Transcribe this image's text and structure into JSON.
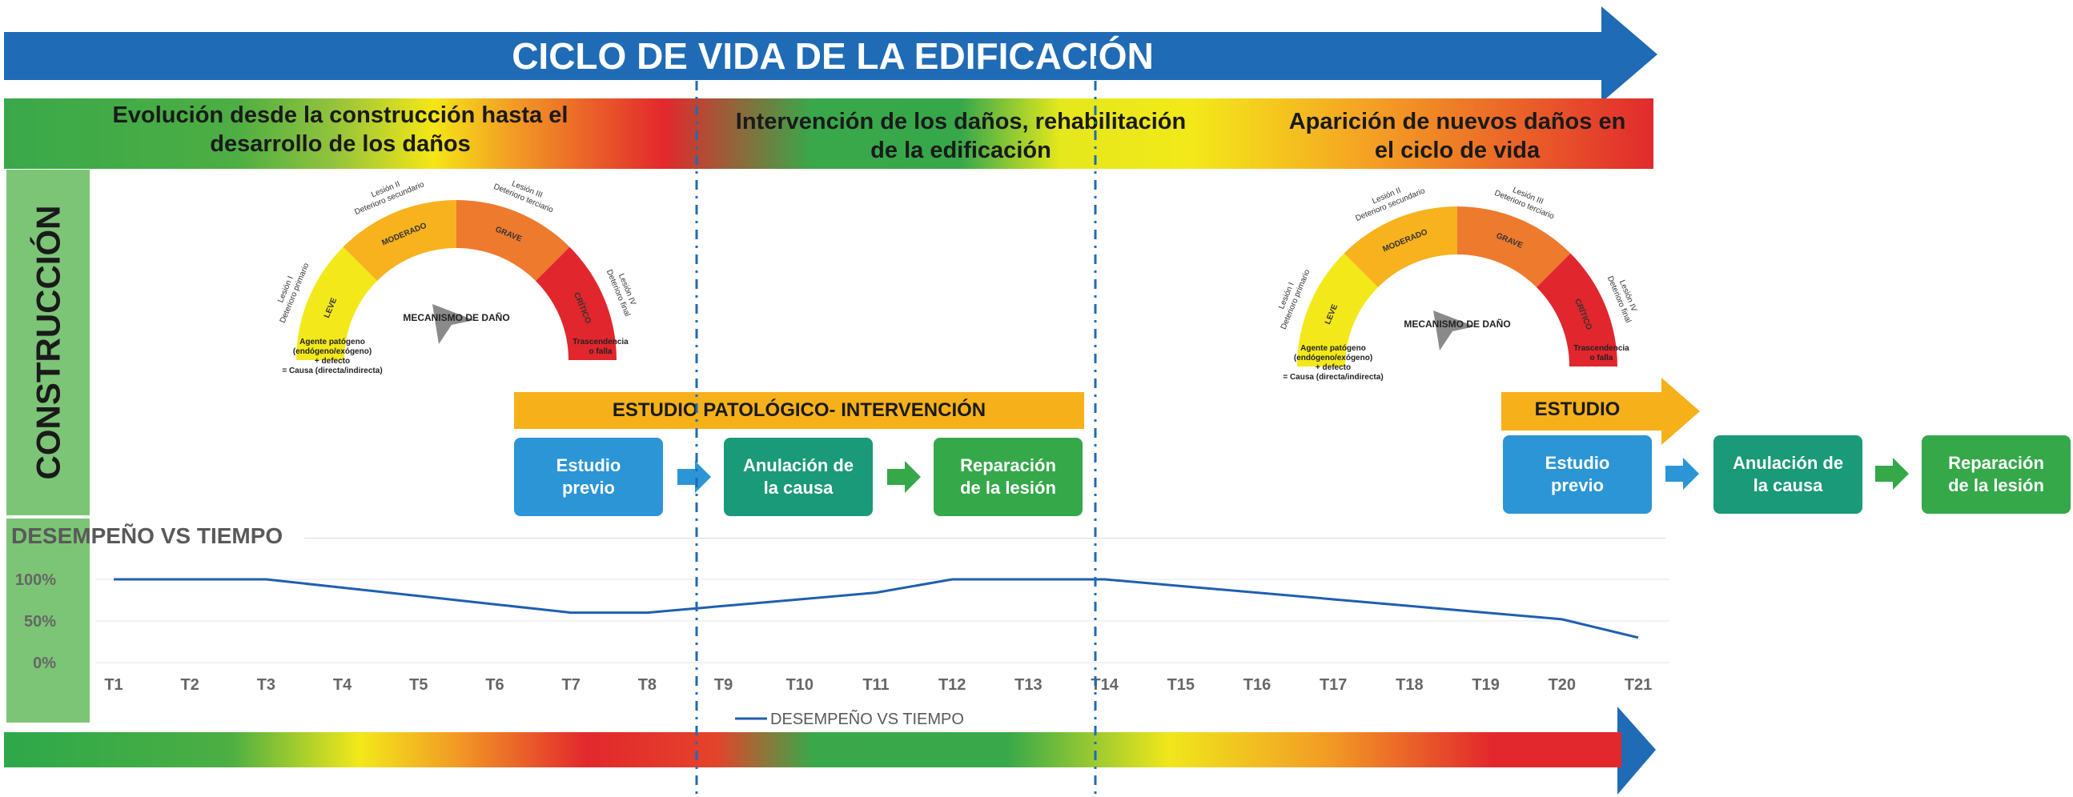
{
  "header": {
    "title": "CICLO DE VIDA DE LA EDIFICACIÓN"
  },
  "phases": [
    {
      "label_line1": "Evolución desde la construcción hasta el",
      "label_line2": "desarrollo de los daños"
    },
    {
      "label_line1": "Intervención de los daños, rehabilitación",
      "label_line2": "de la edificación"
    },
    {
      "label_line1": "Aparición de nuevos daños en",
      "label_line2": "el ciclo de vida"
    }
  ],
  "side_label": "CONSTRUCCIÓN",
  "gauge": {
    "center_label": "MECANISMO DE DAÑO",
    "segments": [
      "LEVE",
      "MODERADO",
      "GRAVE",
      "CRÍTICO"
    ],
    "outer_labels": [
      {
        "line1": "Lesión I",
        "line2": "Deterioro primario"
      },
      {
        "line1": "Lesión II",
        "line2": "Deterioro secundario"
      },
      {
        "line1": "Lesión III",
        "line2": "Deterioro terciario"
      },
      {
        "line1": "Lesión IV",
        "line2": "Deterioro final"
      }
    ],
    "left_caption": [
      "Agente patógeno",
      "(endógeno/exógeno)",
      "+ defecto",
      "= Causa (directa/indirecta)"
    ],
    "right_caption": [
      "Trascendencia",
      "o falla"
    ],
    "colors": [
      "#f3e91a",
      "#f7b21e",
      "#ee7a2e",
      "#e1262d"
    ]
  },
  "banner_1": "ESTUDIO PATOLÓGICO- INTERVENCIÓN",
  "banner_2": "ESTUDIO",
  "steps_1": [
    {
      "line1": "Estudio",
      "line2": "previo"
    },
    {
      "line1": "Anulación de",
      "line2": "la causa"
    },
    {
      "line1": "Reparación",
      "line2": "de la lesión"
    }
  ],
  "steps_2": [
    {
      "line1": "Estudio",
      "line2": "previo"
    },
    {
      "line1": "Anulación de",
      "line2": "la causa"
    },
    {
      "line1": "Reparación",
      "line2": "de la lesión"
    }
  ],
  "chart_title": "DESEMPEÑO VS TIEMPO",
  "chart_data": {
    "type": "line",
    "x": [
      "T1",
      "T2",
      "T3",
      "T4",
      "T5",
      "T6",
      "T7",
      "T8",
      "T9",
      "T10",
      "T11",
      "T12",
      "T13",
      "T14",
      "T15",
      "T16",
      "T17",
      "T18",
      "T19",
      "T20",
      "T21"
    ],
    "series": [
      {
        "name": "DESEMPEÑO VS TIEMPO",
        "values": [
          100,
          100,
          100,
          90,
          80,
          70,
          60,
          60,
          68,
          76,
          84,
          100,
          100,
          100,
          92,
          84,
          76,
          68,
          60,
          52,
          30
        ],
        "color": "#1f5fb0"
      }
    ],
    "yticks": [
      "100%",
      "50%",
      "0%"
    ],
    "ytick_values": [
      100,
      50,
      0
    ],
    "ylim": [
      0,
      100
    ],
    "legend": "bottom"
  },
  "colors": {
    "arrow_blue": "#1f6bb5",
    "orange": "#f6b019",
    "side_green": "#7cc576"
  }
}
